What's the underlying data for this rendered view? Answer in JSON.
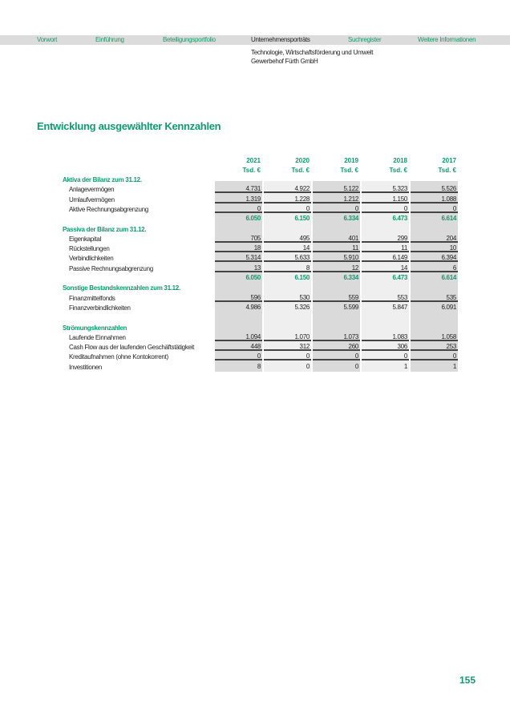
{
  "nav": [
    "Vorwort",
    "Einführung",
    "Beteiligungsportfolio",
    "Unternehmensporträts",
    "Suchregister",
    "Weitere Informationen"
  ],
  "subtitle": [
    "Technologie, Wirtschaftsförderung und Umwelt",
    "Gewerbehof Fürth GmbH"
  ],
  "title": "Entwicklung ausgewählter Kennzahlen",
  "table": {
    "years": [
      "2021",
      "2020",
      "2019",
      "2018",
      "2017"
    ],
    "unit": "Tsd. €",
    "rows": [
      {
        "label": "Aktiva der Bilanz zum 31.12.",
        "type": "section"
      },
      {
        "label": "Anlagevermögen",
        "values": [
          "4.731",
          "4.922",
          "5.122",
          "5.323",
          "5.526"
        ],
        "ul": true
      },
      {
        "label": "Umlaufvermögen",
        "values": [
          "1.319",
          "1.228",
          "1.212",
          "1.150",
          "1.088"
        ],
        "ul": true
      },
      {
        "label": "Aktive Rechnungsabgrenzung",
        "values": [
          "0",
          "0",
          "0",
          "0",
          "0"
        ],
        "ul": true
      },
      {
        "label": "",
        "values": [
          "6.050",
          "6.150",
          "6.334",
          "6.473",
          "6.614"
        ],
        "type": "total"
      },
      {
        "label": "Passiva der Bilanz zum 31.12.",
        "type": "section"
      },
      {
        "label": "Eigenkapital",
        "values": [
          "705",
          "495",
          "401",
          "299",
          "204"
        ],
        "ul": true
      },
      {
        "label": "Rückstellungen",
        "values": [
          "18",
          "14",
          "11",
          "11",
          "10"
        ],
        "ul": true
      },
      {
        "label": "Verbindlichkeiten",
        "values": [
          "5.314",
          "5.633",
          "5.910",
          "6.149",
          "6.394"
        ],
        "ul": true
      },
      {
        "label": "Passive Rechnungsabgrenzung",
        "values": [
          "13",
          "8",
          "12",
          "14",
          "6"
        ],
        "ul": true
      },
      {
        "label": "",
        "values": [
          "6.050",
          "6.150",
          "6.334",
          "6.473",
          "6.614"
        ],
        "type": "total"
      },
      {
        "label": "Sonstige Bestandskennzahlen zum 31.12.",
        "type": "section"
      },
      {
        "label": "Finanzmittelfonds",
        "values": [
          "596",
          "530",
          "559",
          "553",
          "535"
        ],
        "ul": true
      },
      {
        "label": "Finanzverbindlichkeiten",
        "values": [
          "4.986",
          "5.326",
          "5.599",
          "5.847",
          "6.091"
        ]
      },
      {
        "label": "",
        "type": "blank"
      },
      {
        "label": "Strömungskennzahlen",
        "type": "section"
      },
      {
        "label": "Laufende Einnahmen",
        "values": [
          "1.094",
          "1.070",
          "1.073",
          "1.083",
          "1.058"
        ],
        "ul": true
      },
      {
        "label": "Cash Flow aus der laufenden Geschäftstätigkeit",
        "values": [
          "448",
          "312",
          "260",
          "306",
          "253"
        ],
        "ul": true
      },
      {
        "label": "Kreditaufnahmen (ohne Kontokorrent)",
        "values": [
          "0",
          "0",
          "0",
          "0",
          "0"
        ],
        "ul": true
      },
      {
        "label": "Investitionen",
        "values": [
          "8",
          "0",
          "0",
          "1",
          "1"
        ]
      }
    ]
  },
  "page_number": "155",
  "colors": {
    "accent": "#119a6e",
    "nav_bg": "#dcdcdc"
  }
}
